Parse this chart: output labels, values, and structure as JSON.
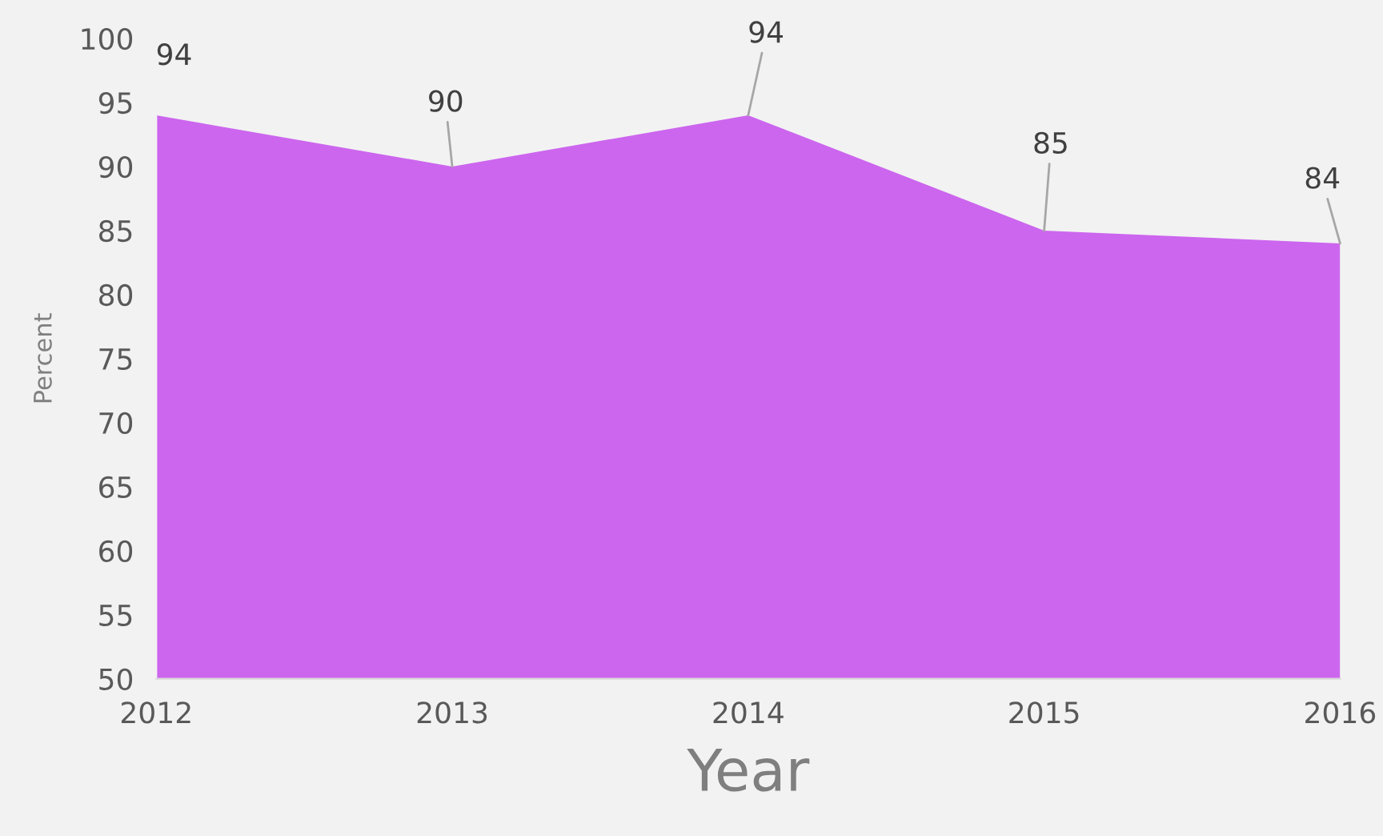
{
  "chart_data": {
    "type": "area",
    "xlabel": "Year",
    "ylabel": "Percent",
    "categories": [
      "2012",
      "2013",
      "2014",
      "2015",
      "2016"
    ],
    "series": [
      {
        "color": "#cc66ee",
        "values": [
          94,
          90,
          94,
          85,
          84
        ]
      }
    ],
    "ylim": [
      50,
      100
    ],
    "yticks": [
      50,
      55,
      60,
      65,
      70,
      75,
      80,
      85,
      90,
      95,
      100
    ],
    "data_labels": true,
    "grid": false,
    "legend": false
  }
}
